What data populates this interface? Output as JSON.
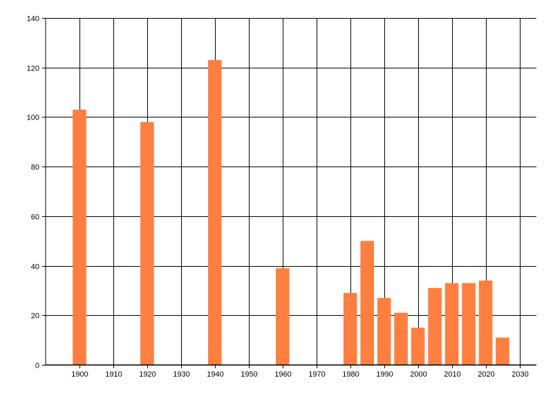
{
  "chart_data": {
    "type": "bar",
    "title": "",
    "xlabel": "",
    "ylabel": "",
    "x": [
      1900,
      1920,
      1940,
      1960,
      1980,
      1985,
      1990,
      1995,
      2000,
      2005,
      2010,
      2015,
      2020,
      2025
    ],
    "values": [
      103,
      98,
      123,
      39,
      29,
      50,
      27,
      21,
      15,
      31,
      33,
      33,
      34,
      11
    ],
    "xlim": [
      1890,
      2035
    ],
    "ylim": [
      0,
      140
    ],
    "x_ticks": [
      1900,
      1910,
      1920,
      1930,
      1940,
      1950,
      1960,
      1970,
      1980,
      1990,
      2000,
      2010,
      2020,
      2030
    ],
    "x_tick_labels": [
      "1900",
      "1910",
      "1920",
      "1930",
      "1940",
      "1950",
      "1960",
      "1970",
      "1980",
      "1990",
      "2000",
      "2010",
      "2020",
      "2030"
    ],
    "y_ticks": [
      0,
      20,
      40,
      60,
      80,
      100,
      120,
      140
    ],
    "y_tick_labels": [
      "0",
      "20",
      "40",
      "60",
      "80",
      "100",
      "120",
      "140"
    ],
    "bar_width_years": 4,
    "grid": true,
    "legend": "none",
    "bar_color": "#FF7F41",
    "grid_color": "#000000",
    "axis_color": "#000000"
  }
}
